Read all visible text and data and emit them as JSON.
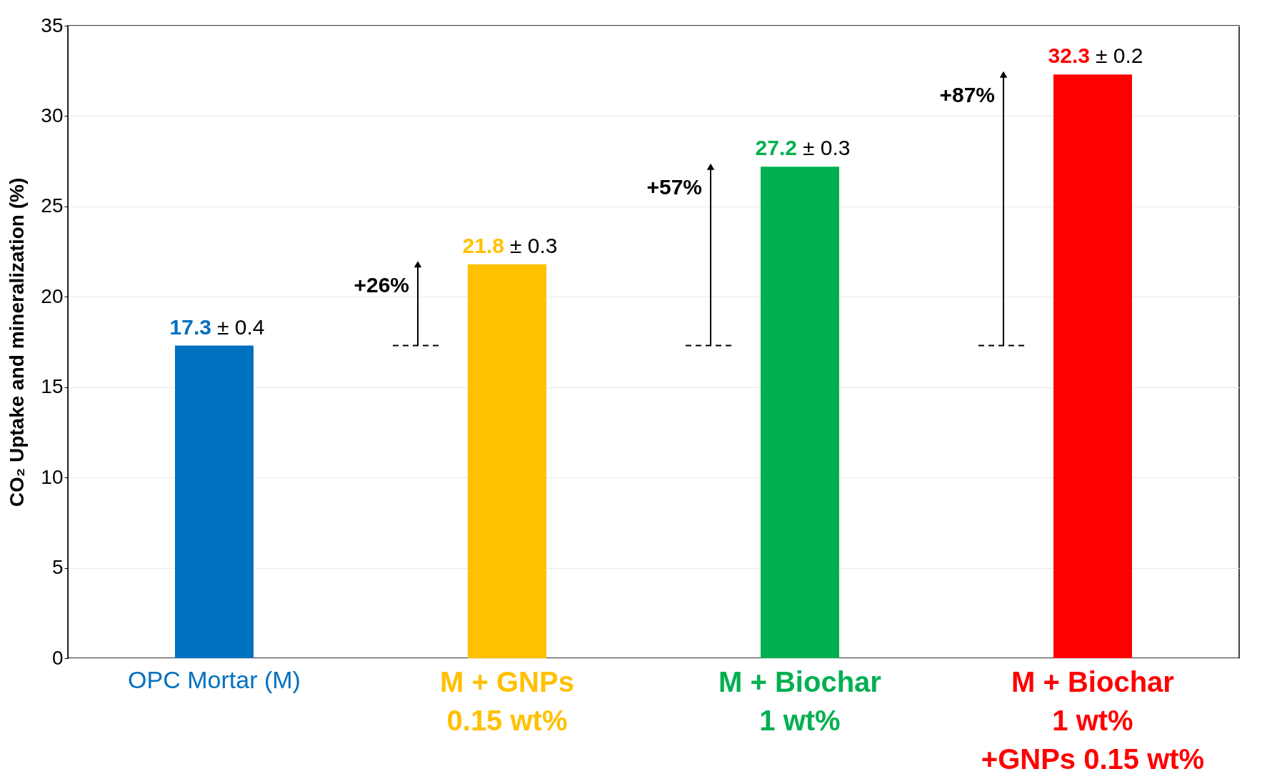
{
  "chart_data": {
    "type": "bar",
    "ylabel": "CO₂ Uptake and mineralization (%)",
    "categories": [
      "OPC Mortar (M)",
      "M + GNPs\n0.15 wt%",
      "M + Biochar\n1 wt%",
      "M + Biochar\n1 wt%\n+GNPs 0.15 wt%"
    ],
    "values": [
      17.3,
      21.8,
      27.2,
      32.3
    ],
    "colors": [
      "#0070c0",
      "#ffc000",
      "#00b050",
      "#ff0000"
    ],
    "data_labels": true,
    "annotations": [
      {
        "text": "± 0.4",
        "x": "OPC Mortar (M)",
        "y": 17.3
      },
      {
        "text": "± 0.3",
        "x": "M + GNPs\n0.15 wt%",
        "y": 21.8
      },
      {
        "text": "± 0.3",
        "x": "M + Biochar\n1 wt%",
        "y": 27.2
      },
      {
        "text": "± 0.2",
        "x": "M + Biochar\n1 wt%\n+GNPs 0.15 wt%",
        "y": 32.3
      },
      "+26%",
      "+57%",
      "+87%"
    ],
    "ylim": [
      0,
      35
    ],
    "yticks": [
      0,
      5,
      10,
      15,
      20,
      25,
      30,
      35
    ],
    "grid": "y"
  }
}
